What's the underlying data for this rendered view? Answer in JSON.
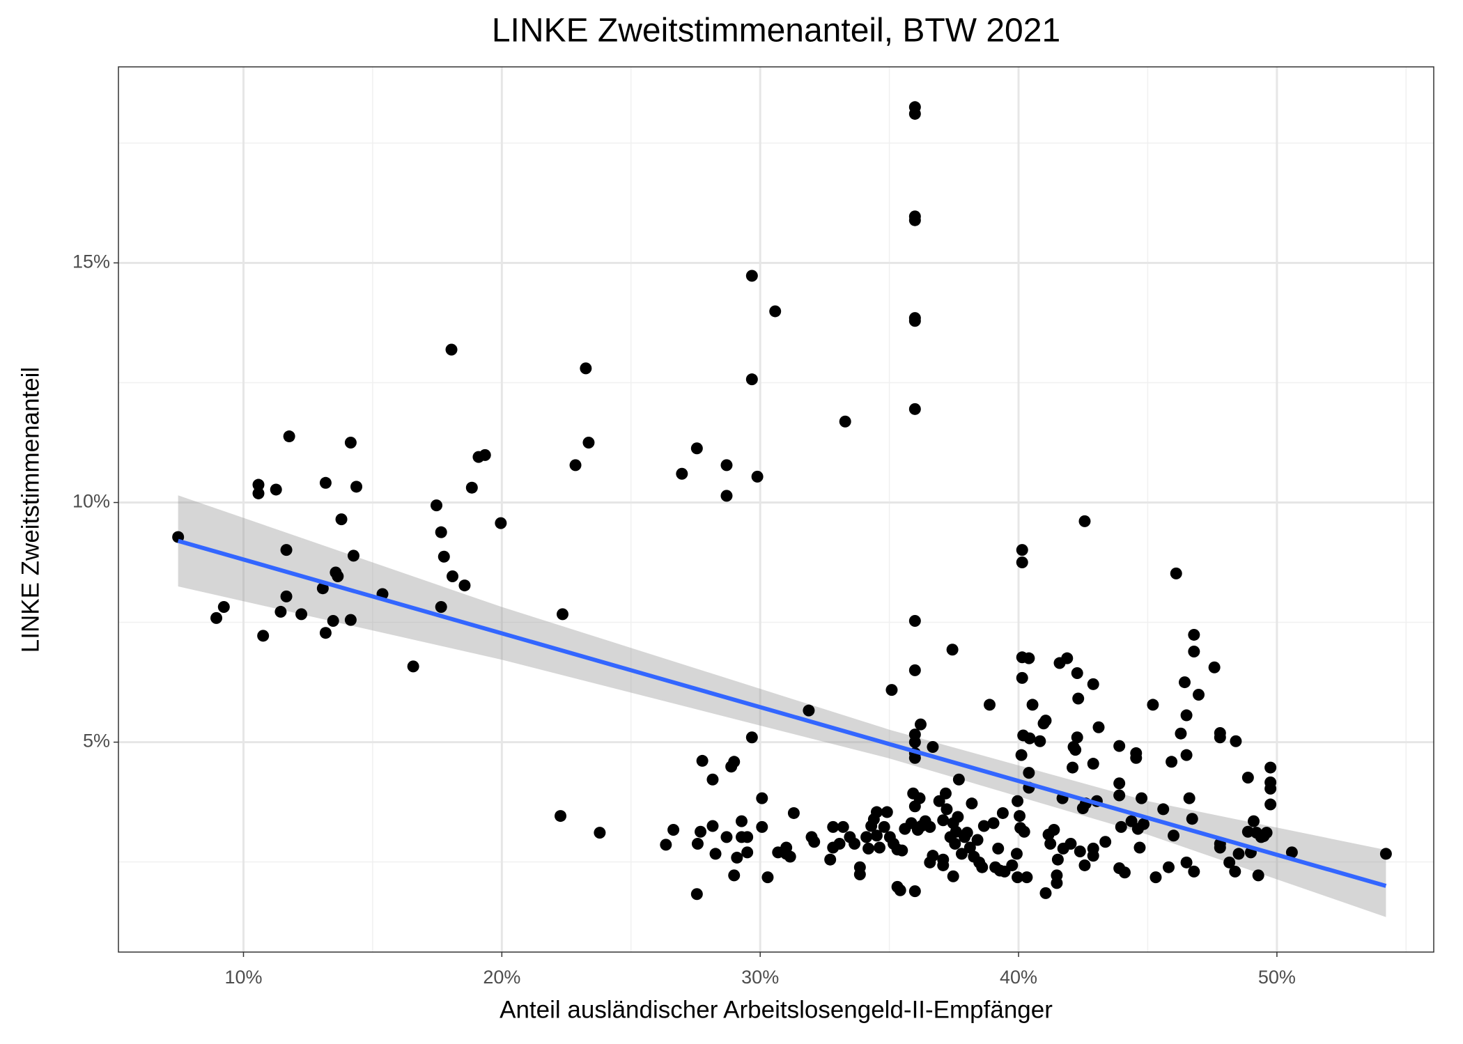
{
  "chart_data": {
    "type": "scatter",
    "title": "LINKE Zweitstimmenanteil, BTW 2021",
    "x_label": "Anteil ausländischer Arbeitslosengeld-II-Empfänger",
    "y_label": "LINKE Zweitstimmenanteil",
    "color": "#000000",
    "xlim": [
      5.16,
      56.07
    ],
    "ylim": [
      0.62,
      19.09
    ],
    "xticks": [
      {
        "value": 10,
        "label": "10%"
      },
      {
        "value": 20,
        "label": "20%"
      },
      {
        "value": 30,
        "label": "30%"
      },
      {
        "value": 40,
        "label": "40%"
      },
      {
        "value": 50,
        "label": "50%"
      }
    ],
    "yticks": [
      {
        "value": 5,
        "label": "5%"
      },
      {
        "value": 10,
        "label": "10%"
      },
      {
        "value": 15,
        "label": "15%"
      }
    ],
    "xminor": [
      5,
      15,
      25,
      35,
      45,
      55
    ],
    "yminor": [
      2.5,
      7.5,
      12.5,
      17.5
    ],
    "grid": true,
    "x": [
      7.47,
      8.95,
      9.24,
      10.58,
      10.58,
      10.76,
      11.26,
      11.44,
      11.66,
      11.66,
      11.77,
      12.24,
      13.07,
      13.18,
      13.18,
      13.47,
      13.57,
      13.65,
      13.79,
      14.15,
      14.15,
      14.26,
      14.37,
      15.38,
      16.57,
      17.47,
      17.65,
      17.65,
      17.76,
      18.05,
      18.09,
      18.56,
      18.84,
      19.1,
      19.35,
      19.96,
      22.27,
      22.35,
      22.85,
      23.25,
      23.36,
      23.79,
      26.35,
      26.64,
      26.97,
      27.55,
      27.55,
      27.58,
      27.69,
      27.76,
      28.16,
      28.16,
      28.27,
      28.7,
      28.7,
      28.7,
      28.88,
      28.99,
      28.99,
      29.1,
      29.28,
      29.28,
      29.5,
      29.5,
      29.68,
      29.68,
      29.68,
      29.89,
      30.07,
      30.07,
      30.29,
      30.58,
      30.69,
      31.01,
      31.01,
      31.16,
      31.3,
      31.88,
      31.99,
      32.09,
      32.71,
      32.82,
      32.82,
      33.07,
      33.21,
      33.29,
      33.47,
      33.65,
      33.86,
      33.86,
      34.11,
      34.19,
      34.3,
      34.4,
      34.51,
      34.51,
      34.62,
      34.8,
      34.91,
      35.02,
      35.09,
      35.16,
      35.31,
      35.31,
      35.42,
      35.49,
      35.6,
      35.85,
      35.92,
      35.99,
      35.99,
      35.99,
      35.99,
      35.99,
      35.99,
      35.99,
      35.99,
      35.99,
      35.99,
      35.99,
      35.99,
      35.99,
      35.99,
      35.99,
      36.1,
      36.17,
      36.21,
      36.24,
      36.39,
      36.57,
      36.57,
      36.68,
      36.68,
      36.93,
      37.08,
      37.08,
      37.08,
      37.18,
      37.22,
      37.36,
      37.44,
      37.47,
      37.47,
      37.54,
      37.58,
      37.65,
      37.69,
      37.8,
      37.91,
      38.01,
      38.12,
      38.19,
      38.27,
      38.41,
      38.48,
      38.59,
      38.66,
      38.88,
      39.03,
      39.1,
      39.21,
      39.28,
      39.39,
      39.46,
      39.75,
      39.93,
      39.96,
      39.96,
      40.04,
      40.07,
      40.11,
      40.14,
      40.14,
      40.14,
      40.14,
      40.18,
      40.22,
      40.32,
      40.4,
      40.4,
      40.4,
      40.43,
      40.54,
      40.83,
      40.97,
      41.05,
      41.05,
      41.16,
      41.23,
      41.37,
      41.48,
      41.48,
      41.52,
      41.59,
      41.7,
      41.73,
      41.88,
      42.02,
      42.09,
      42.13,
      42.2,
      42.27,
      42.27,
      42.31,
      42.38,
      42.49,
      42.56,
      42.56,
      42.6,
      42.89,
      42.89,
      42.89,
      42.89,
      43.03,
      43.1,
      43.36,
      43.9,
      43.9,
      43.9,
      43.9,
      43.97,
      44.11,
      44.37,
      44.55,
      44.55,
      44.62,
      44.69,
      44.76,
      44.84,
      45.2,
      45.31,
      45.6,
      45.81,
      45.92,
      46.0,
      46.1,
      46.28,
      46.43,
      46.5,
      46.5,
      46.5,
      46.61,
      46.72,
      46.79,
      46.79,
      46.79,
      46.97,
      47.58,
      47.8,
      47.8,
      47.8,
      47.8,
      48.16,
      48.38,
      48.41,
      48.52,
      48.88,
      48.88,
      48.99,
      49.1,
      49.21,
      49.28,
      49.39,
      49.49,
      49.6,
      49.75,
      49.75,
      49.75,
      49.75,
      50.58,
      54.22
    ],
    "values": [
      9.28,
      7.59,
      7.82,
      10.37,
      10.19,
      7.22,
      10.27,
      7.72,
      9.01,
      8.04,
      11.38,
      7.67,
      8.21,
      10.41,
      7.28,
      7.53,
      8.54,
      8.46,
      9.65,
      11.25,
      7.55,
      8.89,
      10.33,
      8.09,
      6.58,
      9.94,
      9.38,
      7.82,
      8.87,
      13.19,
      8.46,
      8.27,
      10.31,
      10.95,
      10.99,
      9.57,
      3.46,
      7.67,
      10.78,
      12.8,
      11.25,
      3.11,
      2.86,
      3.17,
      10.6,
      1.83,
      11.13,
      2.88,
      3.13,
      4.61,
      4.22,
      3.25,
      2.67,
      10.78,
      10.14,
      3.02,
      4.49,
      4.59,
      2.22,
      2.59,
      3.35,
      3.02,
      2.7,
      3.02,
      14.73,
      12.57,
      5.1,
      10.54,
      3.83,
      3.23,
      2.18,
      13.99,
      2.7,
      2.8,
      2.67,
      2.61,
      3.52,
      5.66,
      3.02,
      2.92,
      2.55,
      3.23,
      2.8,
      2.88,
      3.23,
      11.69,
      3.02,
      2.88,
      2.39,
      2.24,
      3.02,
      2.78,
      3.25,
      3.39,
      3.54,
      3.05,
      2.8,
      3.23,
      3.54,
      3.02,
      6.09,
      2.88,
      1.98,
      2.76,
      1.91,
      2.74,
      3.19,
      3.31,
      3.93,
      18.25,
      18.11,
      15.97,
      15.89,
      13.85,
      13.79,
      11.95,
      7.53,
      6.5,
      5.16,
      5.0,
      4.77,
      4.67,
      3.66,
      1.89,
      3.17,
      3.83,
      5.37,
      3.25,
      3.35,
      3.23,
      2.49,
      4.9,
      2.63,
      3.77,
      3.37,
      2.55,
      2.43,
      3.93,
      3.6,
      3.02,
      6.93,
      2.2,
      3.31,
      2.88,
      3.13,
      3.44,
      4.22,
      2.67,
      3.02,
      3.11,
      2.8,
      3.72,
      2.61,
      2.96,
      2.49,
      2.39,
      3.25,
      5.78,
      3.31,
      2.39,
      2.78,
      2.32,
      3.52,
      2.3,
      2.43,
      2.67,
      3.77,
      2.18,
      3.46,
      3.21,
      4.73,
      6.34,
      9.01,
      8.75,
      6.77,
      5.14,
      3.13,
      2.18,
      6.75,
      4.36,
      4.05,
      5.08,
      5.78,
      5.02,
      5.39,
      5.45,
      1.85,
      3.07,
      2.88,
      3.17,
      2.06,
      2.22,
      2.55,
      6.65,
      3.83,
      2.78,
      6.75,
      2.88,
      4.47,
      4.9,
      4.84,
      5.1,
      6.44,
      5.91,
      2.72,
      3.62,
      9.61,
      2.43,
      3.72,
      6.21,
      4.55,
      2.78,
      2.63,
      3.77,
      5.31,
      2.92,
      4.92,
      4.14,
      3.89,
      2.37,
      3.23,
      2.28,
      3.35,
      4.77,
      4.67,
      3.19,
      2.8,
      3.83,
      3.29,
      5.78,
      2.18,
      3.6,
      2.39,
      4.59,
      3.05,
      8.52,
      5.18,
      6.25,
      5.56,
      4.73,
      2.49,
      3.83,
      3.4,
      7.24,
      6.89,
      2.3,
      5.99,
      6.56,
      2.88,
      2.8,
      5.19,
      5.1,
      2.49,
      2.3,
      5.02,
      2.67,
      4.26,
      3.13,
      2.7,
      3.35,
      3.11,
      2.22,
      3.02,
      3.04,
      3.11,
      4.47,
      4.16,
      4.03,
      3.7,
      2.7,
      2.67
    ],
    "fit": {
      "color": "#3366FF",
      "band_color": "#999999",
      "x": [
        7.47,
        54.22
      ],
      "values": [
        9.2,
        2.0
      ],
      "band_x": [
        7.47,
        20,
        35,
        45,
        54.22
      ],
      "band_lower": [
        8.25,
        6.72,
        4.66,
        3.07,
        1.35
      ],
      "band_upper": [
        10.15,
        7.82,
        5.26,
        3.77,
        2.75
      ]
    }
  }
}
